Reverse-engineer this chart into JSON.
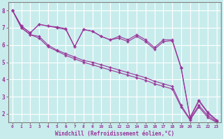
{
  "xlabel": "Windchill (Refroidissement éolien,°C)",
  "background_color": "#c8ecec",
  "line_color": "#993399",
  "grid_color": "#ffffff",
  "xlim": [
    -0.5,
    23.5
  ],
  "ylim": [
    1.5,
    8.5
  ],
  "yticks": [
    2,
    3,
    4,
    5,
    6,
    7,
    8
  ],
  "xticks": [
    0,
    1,
    2,
    3,
    4,
    5,
    6,
    7,
    8,
    9,
    10,
    11,
    12,
    13,
    14,
    15,
    16,
    17,
    18,
    19,
    20,
    21,
    22,
    23
  ],
  "series": [
    [
      8.0,
      7.1,
      6.7,
      7.2,
      7.1,
      7.0,
      6.9,
      5.9,
      6.9,
      6.8,
      6.5,
      6.3,
      6.5,
      6.3,
      6.6,
      6.3,
      5.85,
      6.3,
      6.3,
      4.7,
      1.8,
      2.8,
      2.1,
      1.65
    ],
    [
      8.0,
      7.1,
      6.7,
      7.2,
      7.1,
      7.05,
      6.95,
      5.9,
      6.9,
      6.8,
      6.5,
      6.3,
      6.4,
      6.2,
      6.5,
      6.2,
      5.75,
      6.2,
      6.25,
      4.65,
      1.75,
      2.75,
      2.05,
      1.6
    ],
    [
      8.0,
      7.0,
      6.6,
      6.5,
      6.0,
      5.7,
      5.5,
      5.3,
      5.1,
      5.0,
      4.85,
      4.7,
      4.55,
      4.4,
      4.25,
      4.1,
      3.9,
      3.75,
      3.6,
      2.5,
      1.7,
      2.5,
      1.9,
      1.55
    ],
    [
      8.0,
      7.0,
      6.6,
      6.4,
      5.9,
      5.65,
      5.4,
      5.2,
      5.0,
      4.85,
      4.7,
      4.55,
      4.4,
      4.25,
      4.1,
      3.95,
      3.75,
      3.6,
      3.45,
      2.4,
      1.65,
      2.4,
      1.8,
      1.5
    ]
  ]
}
